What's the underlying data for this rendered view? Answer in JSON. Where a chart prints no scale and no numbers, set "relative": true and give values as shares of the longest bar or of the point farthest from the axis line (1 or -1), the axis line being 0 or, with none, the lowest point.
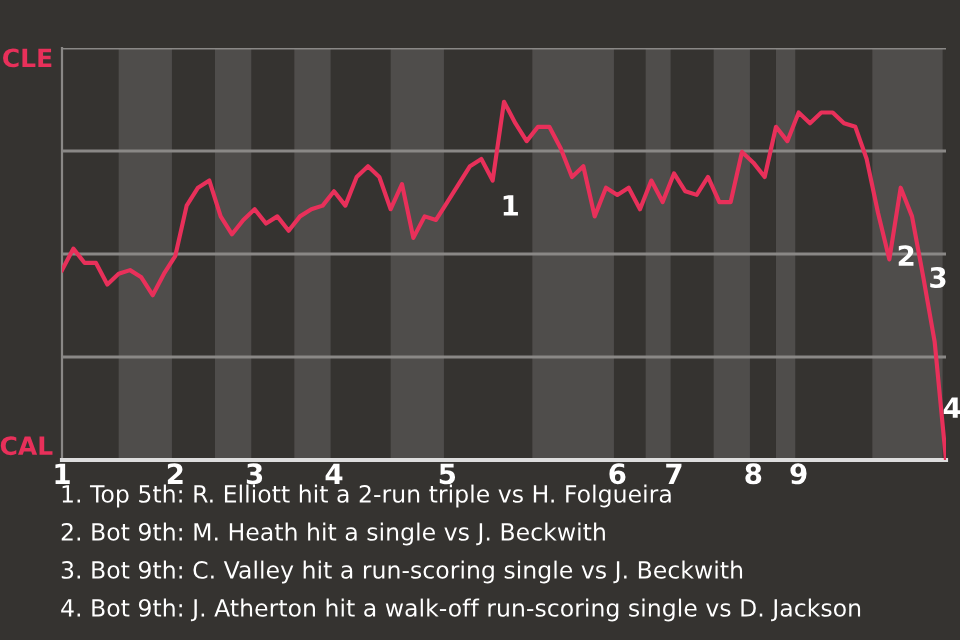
{
  "chart_data": {
    "type": "line",
    "relative": true,
    "categories": [
      "1",
      null,
      null,
      null,
      null,
      null,
      null,
      null,
      null,
      null,
      "2",
      null,
      null,
      null,
      null,
      null,
      null,
      "3",
      null,
      null,
      null,
      null,
      null,
      null,
      "4",
      null,
      null,
      null,
      null,
      null,
      null,
      null,
      null,
      null,
      "5",
      null,
      null,
      null,
      null,
      null,
      null,
      null,
      null,
      null,
      null,
      null,
      null,
      null,
      null,
      "6",
      null,
      null,
      null,
      null,
      "7",
      null,
      null,
      null,
      null,
      null,
      null,
      "8",
      null,
      null,
      null,
      "9",
      null,
      null,
      null,
      null,
      null,
      null,
      null,
      null,
      null,
      null,
      null,
      null,
      null
    ],
    "series": [
      {
        "color": "#e8305a",
        "values": [
          0.53,
          0.59,
          0.55,
          0.55,
          0.49,
          0.52,
          0.53,
          0.51,
          0.46,
          0.52,
          0.57,
          0.71,
          0.76,
          0.78,
          0.68,
          0.63,
          0.67,
          0.7,
          0.66,
          0.68,
          0.64,
          0.68,
          0.7,
          0.71,
          0.75,
          0.71,
          0.79,
          0.82,
          0.79,
          0.7,
          0.77,
          0.62,
          0.68,
          0.67,
          0.72,
          0.77,
          0.82,
          0.84,
          0.78,
          1,
          0.94,
          0.89,
          0.93,
          0.93,
          0.87,
          0.79,
          0.82,
          0.68,
          0.76,
          0.74,
          0.76,
          0.7,
          0.78,
          0.72,
          0.8,
          0.75,
          0.74,
          0.79,
          0.72,
          0.72,
          0.86,
          0.83,
          0.79,
          0.93,
          0.89,
          0.97,
          0.94,
          0.97,
          0.97,
          0.94,
          0.93,
          0.84,
          0.69,
          0.56,
          0.76,
          0.68,
          0.51,
          0.33,
          0
        ]
      }
    ],
    "grid": "y",
    "marker": "none",
    "line_style": "solid",
    "annotations": [
      "CLE",
      "CAL",
      "1",
      "2",
      "3",
      "4",
      "1. Top 5th: R. Elliott hit a 2-run triple vs H. Folgueira",
      "2. Bot 9th: M. Heath hit a single vs J. Beckwith",
      "3. Bot 9th: C. Valley hit a run-scoring single vs J. Beckwith",
      "4. Bot 9th: J. Atherton hit a walk-off run-scoring single vs D. Jackson"
    ]
  }
}
